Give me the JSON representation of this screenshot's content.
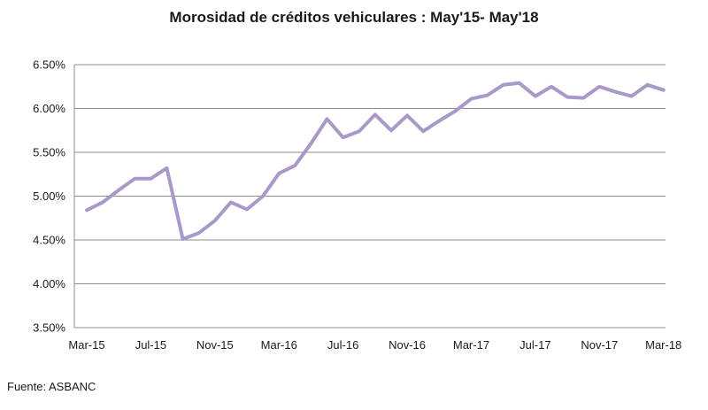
{
  "chart_data": {
    "type": "line",
    "title": "Morosidad de créditos vehiculares : May'15- May'18",
    "xlabel": "",
    "ylabel": "",
    "ylim": [
      3.5,
      6.5
    ],
    "yticks": [
      "3.50%",
      "4.00%",
      "4.50%",
      "5.00%",
      "5.50%",
      "6.00%",
      "6.50%"
    ],
    "ytick_values": [
      3.5,
      4.0,
      4.5,
      5.0,
      5.5,
      6.0,
      6.5
    ],
    "xtick_labels": [
      "Mar-15",
      "Jul-15",
      "Nov-15",
      "Mar-16",
      "Jul-16",
      "Nov-16",
      "Mar-17",
      "Jul-17",
      "Nov-17",
      "Mar-18"
    ],
    "xtick_index": [
      0,
      4,
      8,
      12,
      16,
      20,
      24,
      28,
      32,
      36
    ],
    "grid": true,
    "line_color": "#a899c9",
    "series": [
      {
        "values": [
          4.84,
          4.93,
          5.07,
          5.2,
          5.2,
          5.32,
          4.51,
          4.58,
          4.72,
          4.93,
          4.85,
          5.0,
          5.26,
          5.35,
          5.6,
          5.88,
          5.67,
          5.74,
          5.93,
          5.75,
          5.92,
          5.74,
          5.86,
          5.97,
          6.11,
          6.15,
          6.27,
          6.29,
          6.14,
          6.25,
          6.13,
          6.12,
          6.25,
          6.19,
          6.14,
          6.27,
          6.21
        ]
      }
    ]
  },
  "source": "Fuente: ASBANC"
}
